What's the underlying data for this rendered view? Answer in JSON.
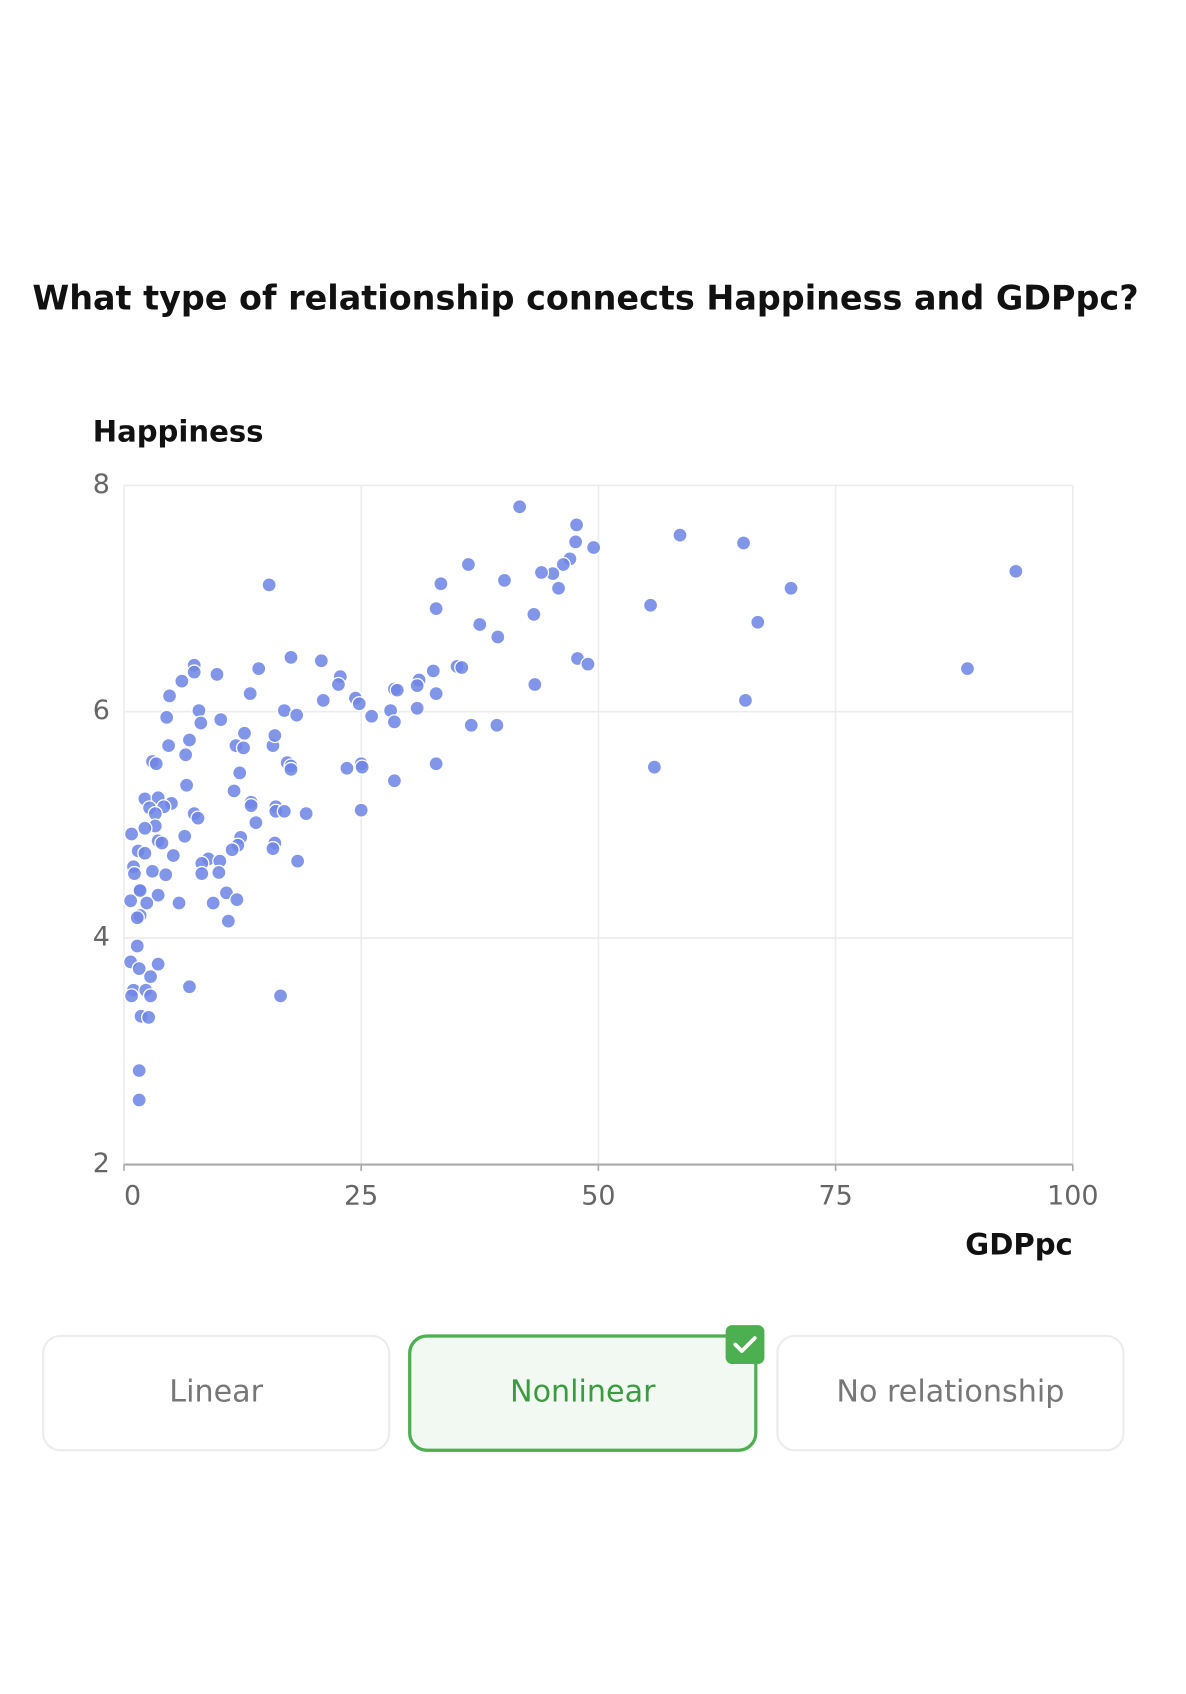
{
  "question": "What type of relationship connects Happiness and GDPpc?",
  "chart_data": {
    "type": "scatter",
    "x_label": "GDPpc",
    "y_label": "Happiness",
    "color": "#6f86e6",
    "grid": true,
    "xlim": [
      0,
      100
    ],
    "ylim": [
      2,
      8
    ],
    "xticks": [
      0,
      25,
      50,
      75,
      100
    ],
    "yticks": [
      2,
      4,
      6,
      8
    ],
    "x": [
      41.7,
      47.7,
      47.6,
      49.5,
      58.6,
      65.3,
      94,
      70.3,
      47,
      46.3,
      45.2,
      44,
      45.8,
      36.3,
      40.1,
      33.4,
      32.9,
      43.2,
      55.5,
      66.8,
      37.5,
      39.4,
      47.8,
      48.9,
      35.1,
      35.6,
      88.9,
      32.6,
      31.1,
      30.9,
      28.5,
      28.8,
      32.9,
      43.3,
      65.5,
      24.4,
      24.8,
      22.8,
      22.6,
      20.8,
      21,
      17.6,
      15.3,
      26.1,
      28.1,
      28.5,
      30.9,
      36.6,
      39.3,
      55.9,
      32.9,
      28.5,
      25,
      25.1,
      23.5,
      25,
      16.9,
      18.2,
      14.2,
      13.3,
      9.8,
      7.4,
      7.4,
      6.1,
      4.8,
      7.9,
      4.5,
      8.1,
      10.2,
      6.9,
      4.7,
      6.5,
      3,
      3.4,
      11.8,
      12.7,
      12.6,
      15.7,
      15.9,
      17.2,
      17.6,
      17.6,
      12.2,
      6.6,
      11.6,
      2.2,
      3.6,
      5,
      2.7,
      4.2,
      13.4,
      13.4,
      16,
      16,
      16.9,
      19.2,
      7.4,
      7.8,
      3.3,
      13.9,
      3.3,
      2.2,
      0.8,
      6.4,
      12.3,
      3.6,
      4,
      12,
      15.9,
      15.7,
      11.4,
      1.5,
      2.2,
      5.2,
      8.9,
      8.2,
      10.1,
      18.3,
      1,
      1.1,
      3,
      4.4,
      8.2,
      10,
      1.6,
      1.7,
      3.6,
      10.8,
      11.9,
      0.7,
      2.4,
      5.8,
      9.4,
      1.7,
      1.4,
      11,
      1.4,
      0.7,
      3.6,
      1.6,
      2.8,
      6.9,
      1,
      2.3,
      0.8,
      2.8,
      16.5,
      1.8,
      2.6,
      1.6,
      1.6
    ],
    "y": [
      7.81,
      7.65,
      7.5,
      7.45,
      7.56,
      7.49,
      7.24,
      7.09,
      7.35,
      7.3,
      7.22,
      7.23,
      7.09,
      7.3,
      7.16,
      7.13,
      6.91,
      6.86,
      6.94,
      6.79,
      6.77,
      6.66,
      6.47,
      6.42,
      6.4,
      6.39,
      6.38,
      6.36,
      6.28,
      6.23,
      6.2,
      6.19,
      6.16,
      6.24,
      6.1,
      6.12,
      6.07,
      6.31,
      6.24,
      6.45,
      6.1,
      6.48,
      7.12,
      5.96,
      6.01,
      5.91,
      6.03,
      5.88,
      5.88,
      5.51,
      5.54,
      5.39,
      5.54,
      5.51,
      5.5,
      5.13,
      6.01,
      5.97,
      6.38,
      6.16,
      6.33,
      6.41,
      6.35,
      6.27,
      6.14,
      6.01,
      5.95,
      5.9,
      5.93,
      5.75,
      5.7,
      5.62,
      5.56,
      5.54,
      5.7,
      5.81,
      5.68,
      5.7,
      5.79,
      5.55,
      5.52,
      5.49,
      5.46,
      5.35,
      5.3,
      5.23,
      5.24,
      5.19,
      5.15,
      5.16,
      5.2,
      5.17,
      5.16,
      5.12,
      5.12,
      5.1,
      5.1,
      5.06,
      5.1,
      5.02,
      4.99,
      4.97,
      4.92,
      4.9,
      4.89,
      4.86,
      4.84,
      4.82,
      4.84,
      4.79,
      4.78,
      4.77,
      4.75,
      4.73,
      4.7,
      4.66,
      4.68,
      4.68,
      4.63,
      4.57,
      4.59,
      4.56,
      4.57,
      4.58,
      4.43,
      4.42,
      4.38,
      4.4,
      4.34,
      4.33,
      4.31,
      4.31,
      4.31,
      4.2,
      4.18,
      4.15,
      3.93,
      3.79,
      3.77,
      3.73,
      3.66,
      3.57,
      3.54,
      3.54,
      3.49,
      3.49,
      3.49,
      3.31,
      3.3,
      2.83,
      2.57
    ]
  },
  "options": [
    {
      "label": "Linear"
    },
    {
      "label": "Nonlinear",
      "state": "correct"
    },
    {
      "label": "No relationship"
    }
  ]
}
